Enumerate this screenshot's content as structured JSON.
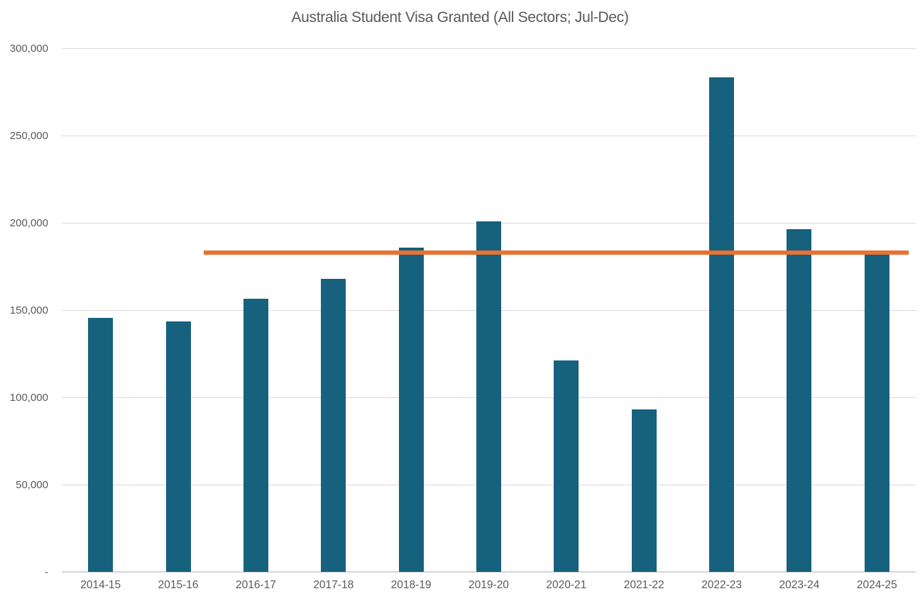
{
  "chart_data": {
    "type": "bar",
    "title": "Australia Student Visa Granted (All Sectors; Jul-Dec)",
    "categories": [
      "2014-15",
      "2015-16",
      "2016-17",
      "2017-18",
      "2018-19",
      "2019-20",
      "2020-21",
      "2021-22",
      "2022-23",
      "2023-24",
      "2024-25"
    ],
    "values": [
      145700,
      143600,
      156600,
      168000,
      185600,
      200800,
      121100,
      93200,
      283500,
      196300,
      182000
    ],
    "xlabel": "",
    "ylabel": "",
    "ylim": [
      0,
      300000
    ],
    "y_tick_interval": 50000,
    "y_ticks": [
      {
        "value": 300000,
        "label": "300,000"
      },
      {
        "value": 250000,
        "label": "250,000"
      },
      {
        "value": 200000,
        "label": "200,000"
      },
      {
        "value": 150000,
        "label": "150,000"
      },
      {
        "value": 100000,
        "label": "100,000"
      },
      {
        "value": 50000,
        "label": "50,000"
      },
      {
        "value": 0,
        "label": "-"
      }
    ],
    "grid": "horizontal",
    "legend": "none",
    "bar_color": "#16617E",
    "reference_line": {
      "value": 183000,
      "color": "#E97132",
      "spans_categories": [
        "2016-17",
        "2024-25"
      ]
    }
  },
  "colors": {
    "title_text": "#595959",
    "axis_label_text": "#595959",
    "gridline": "#D9D9D9",
    "axis_line": "#D6D6D6",
    "background": "#FFFFFF"
  }
}
